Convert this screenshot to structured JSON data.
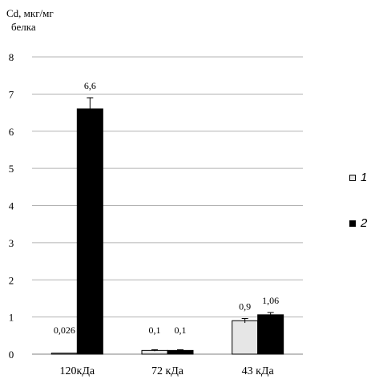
{
  "chart_data": {
    "type": "bar",
    "ylabel_line1": "Cd, мкг/мг",
    "ylabel_line2": "белка",
    "categories": [
      "120кДа",
      "72 кДа",
      "43 кДа"
    ],
    "ylim": [
      0,
      8
    ],
    "yticks": [
      "0",
      "1",
      "2",
      "3",
      "4",
      "5",
      "6",
      "7",
      "8"
    ],
    "grid": true,
    "legend_position": "right",
    "series": [
      {
        "name": "1",
        "color": "#e6e6e6",
        "values": [
          0.026,
          0.1,
          0.9
        ],
        "labels": [
          "0,026",
          "0,1",
          "0,9"
        ],
        "errors": [
          0,
          0.02,
          0.06
        ]
      },
      {
        "name": "2",
        "color": "#000000",
        "values": [
          6.6,
          0.1,
          1.06
        ],
        "labels": [
          "6,6",
          "0,1",
          "1,06"
        ],
        "errors": [
          0.3,
          0.02,
          0.06
        ]
      }
    ]
  }
}
